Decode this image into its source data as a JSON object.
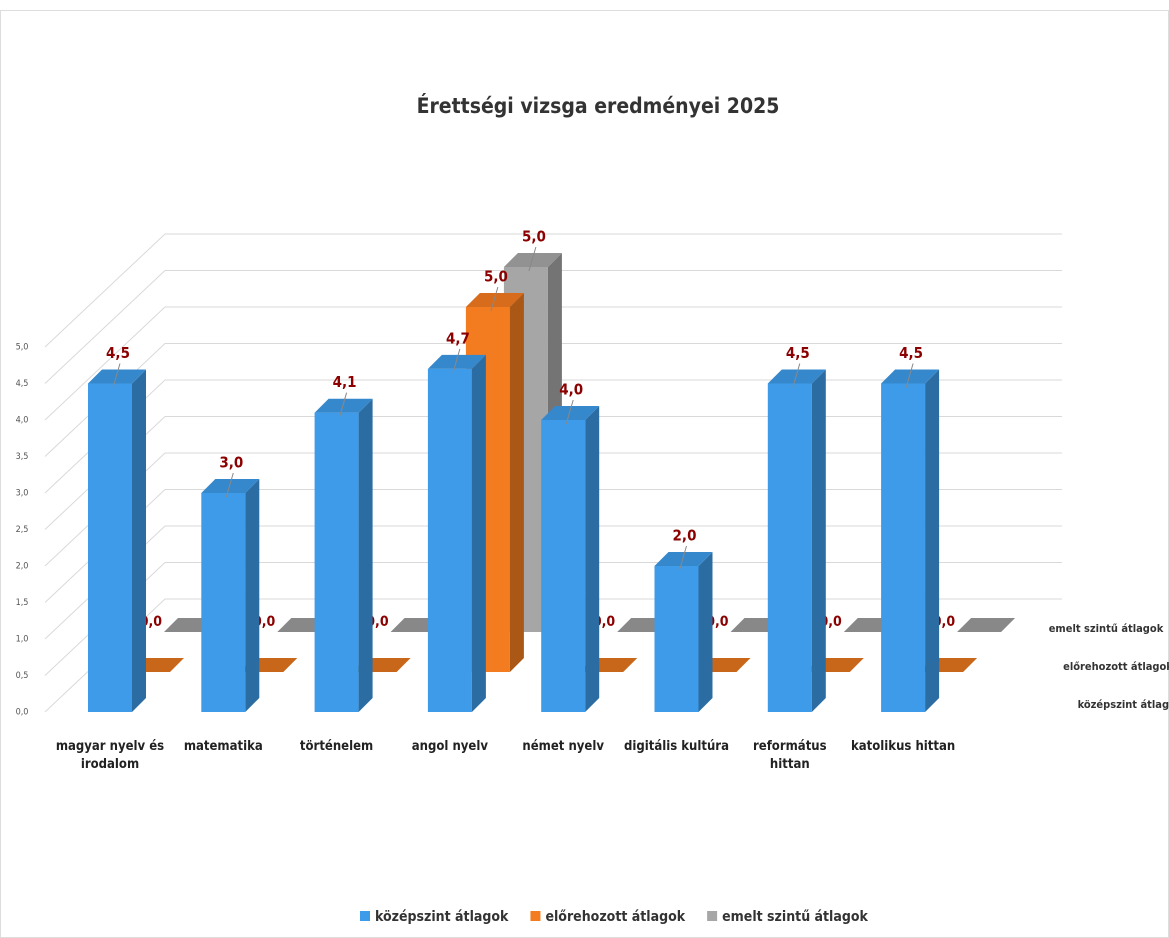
{
  "chart_data": {
    "type": "bar3d",
    "title": "Érettségi vizsga eredményei 2025",
    "categories": [
      "magyar nyelv és irodalom",
      "matematika",
      "történelem",
      "angol nyelv",
      "német nyelv",
      "digitális kultúra",
      "református hittan",
      "katolikus hittan"
    ],
    "series": [
      {
        "name": "középszint átlagok",
        "color": "#3d9be9",
        "values": [
          4.5,
          3.0,
          4.1,
          4.7,
          4.0,
          2.0,
          4.5,
          4.5
        ],
        "value_labels": [
          "4,5",
          "3,0",
          "4,1",
          "4,7",
          "4,0",
          "2,0",
          "4,5",
          "4,5"
        ]
      },
      {
        "name": "előrehozott átlagok",
        "color": "#f47c20",
        "values": [
          0,
          0,
          0,
          5.0,
          0,
          0,
          0,
          0
        ],
        "value_labels": [
          "0,0",
          "0,0",
          "0,0",
          "5,0",
          "0,0",
          "0,0",
          "0,0",
          "0,0"
        ]
      },
      {
        "name": "emelt szintű átlagok",
        "color": "#a6a6a6",
        "values": [
          0,
          0,
          0,
          5.0,
          0,
          0,
          0,
          0
        ],
        "value_labels": [
          "0,0",
          "0,0",
          "0,0",
          "5,0",
          "0,0",
          "0,0",
          "0,0",
          "0,0"
        ]
      }
    ],
    "ylim": [
      0,
      5
    ],
    "yticks": [
      {
        "value": 0,
        "label": "0,0"
      },
      {
        "value": 0.5,
        "label": "0,5"
      },
      {
        "value": 1,
        "label": "1,0"
      },
      {
        "value": 1.5,
        "label": "1,5"
      },
      {
        "value": 2,
        "label": "2,0"
      },
      {
        "value": 2.5,
        "label": "2,5"
      },
      {
        "value": 3,
        "label": "3,0"
      },
      {
        "value": 3.5,
        "label": "3,5"
      },
      {
        "value": 4,
        "label": "4,0"
      },
      {
        "value": 4.5,
        "label": "4,5"
      },
      {
        "value": 5,
        "label": "5,0"
      }
    ],
    "grid": true,
    "legend": "bottom"
  }
}
